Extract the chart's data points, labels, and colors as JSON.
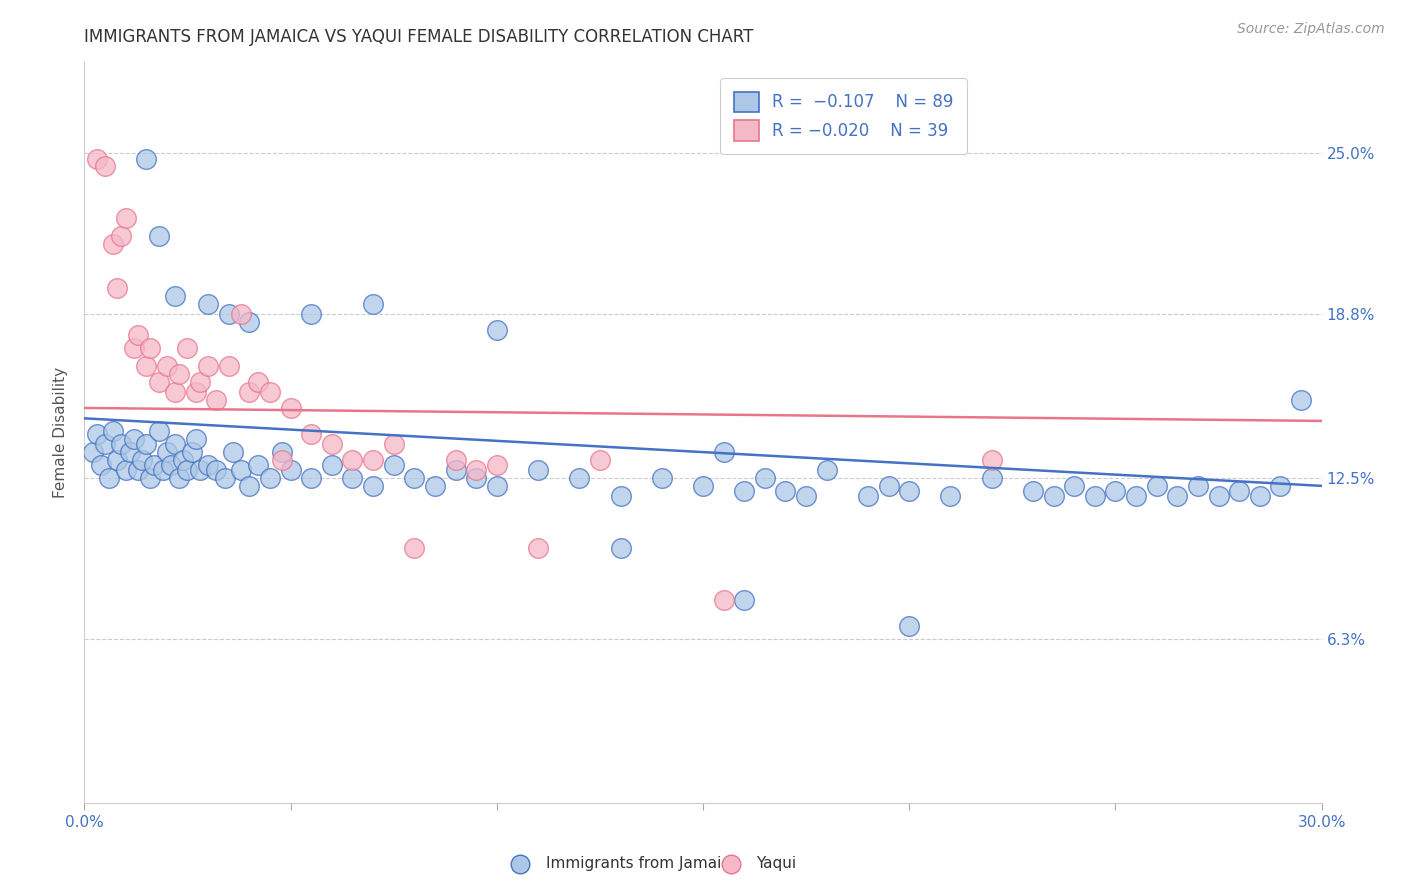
{
  "title": "IMMIGRANTS FROM JAMAICA VS YAQUI FEMALE DISABILITY CORRELATION CHART",
  "source": "Source: ZipAtlas.com",
  "ylabel": "Female Disability",
  "ytick_labels": [
    "6.3%",
    "12.5%",
    "18.8%",
    "25.0%"
  ],
  "ytick_values": [
    0.063,
    0.125,
    0.188,
    0.25
  ],
  "xmin": 0.0,
  "xmax": 0.3,
  "ymin": 0.0,
  "ymax": 0.285,
  "color_blue": "#adc8e6",
  "color_pink": "#f5b8c8",
  "line_blue": "#4472c4",
  "line_pink": "#e8768a",
  "title_fontsize": 12,
  "source_fontsize": 10,
  "axis_label_fontsize": 11,
  "tick_fontsize": 11,
  "background_color": "#ffffff",
  "blue_line_start": 0.148,
  "blue_line_end": 0.122,
  "pink_line_start": 0.152,
  "pink_line_end": 0.147,
  "blue_x": [
    0.002,
    0.003,
    0.004,
    0.005,
    0.006,
    0.007,
    0.008,
    0.009,
    0.01,
    0.011,
    0.012,
    0.013,
    0.014,
    0.015,
    0.016,
    0.017,
    0.018,
    0.019,
    0.02,
    0.021,
    0.022,
    0.023,
    0.024,
    0.025,
    0.026,
    0.027,
    0.028,
    0.03,
    0.032,
    0.034,
    0.036,
    0.038,
    0.04,
    0.042,
    0.045,
    0.048,
    0.05,
    0.055,
    0.06,
    0.065,
    0.07,
    0.075,
    0.08,
    0.085,
    0.09,
    0.095,
    0.1,
    0.11,
    0.12,
    0.13,
    0.14,
    0.15,
    0.155,
    0.16,
    0.165,
    0.17,
    0.175,
    0.18,
    0.19,
    0.195,
    0.2,
    0.21,
    0.22,
    0.23,
    0.235,
    0.24,
    0.245,
    0.25,
    0.255,
    0.26,
    0.265,
    0.27,
    0.275,
    0.28,
    0.285,
    0.29,
    0.015,
    0.018,
    0.022,
    0.03,
    0.035,
    0.04,
    0.055,
    0.07,
    0.1,
    0.13,
    0.16,
    0.2,
    0.295
  ],
  "blue_y": [
    0.135,
    0.142,
    0.13,
    0.138,
    0.125,
    0.143,
    0.132,
    0.138,
    0.128,
    0.135,
    0.14,
    0.128,
    0.132,
    0.138,
    0.125,
    0.13,
    0.143,
    0.128,
    0.135,
    0.13,
    0.138,
    0.125,
    0.132,
    0.128,
    0.135,
    0.14,
    0.128,
    0.13,
    0.128,
    0.125,
    0.135,
    0.128,
    0.122,
    0.13,
    0.125,
    0.135,
    0.128,
    0.125,
    0.13,
    0.125,
    0.122,
    0.13,
    0.125,
    0.122,
    0.128,
    0.125,
    0.122,
    0.128,
    0.125,
    0.118,
    0.125,
    0.122,
    0.135,
    0.12,
    0.125,
    0.12,
    0.118,
    0.128,
    0.118,
    0.122,
    0.12,
    0.118,
    0.125,
    0.12,
    0.118,
    0.122,
    0.118,
    0.12,
    0.118,
    0.122,
    0.118,
    0.122,
    0.118,
    0.12,
    0.118,
    0.122,
    0.248,
    0.218,
    0.195,
    0.192,
    0.188,
    0.185,
    0.188,
    0.192,
    0.182,
    0.098,
    0.078,
    0.068,
    0.155
  ],
  "pink_x": [
    0.003,
    0.005,
    0.007,
    0.008,
    0.009,
    0.01,
    0.012,
    0.013,
    0.015,
    0.016,
    0.018,
    0.02,
    0.022,
    0.023,
    0.025,
    0.027,
    0.028,
    0.03,
    0.032,
    0.035,
    0.038,
    0.04,
    0.042,
    0.045,
    0.048,
    0.05,
    0.055,
    0.06,
    0.065,
    0.07,
    0.075,
    0.08,
    0.09,
    0.095,
    0.1,
    0.11,
    0.125,
    0.155,
    0.22
  ],
  "pink_y": [
    0.248,
    0.245,
    0.215,
    0.198,
    0.218,
    0.225,
    0.175,
    0.18,
    0.168,
    0.175,
    0.162,
    0.168,
    0.158,
    0.165,
    0.175,
    0.158,
    0.162,
    0.168,
    0.155,
    0.168,
    0.188,
    0.158,
    0.162,
    0.158,
    0.132,
    0.152,
    0.142,
    0.138,
    0.132,
    0.132,
    0.138,
    0.098,
    0.132,
    0.128,
    0.13,
    0.098,
    0.132,
    0.078,
    0.132
  ]
}
